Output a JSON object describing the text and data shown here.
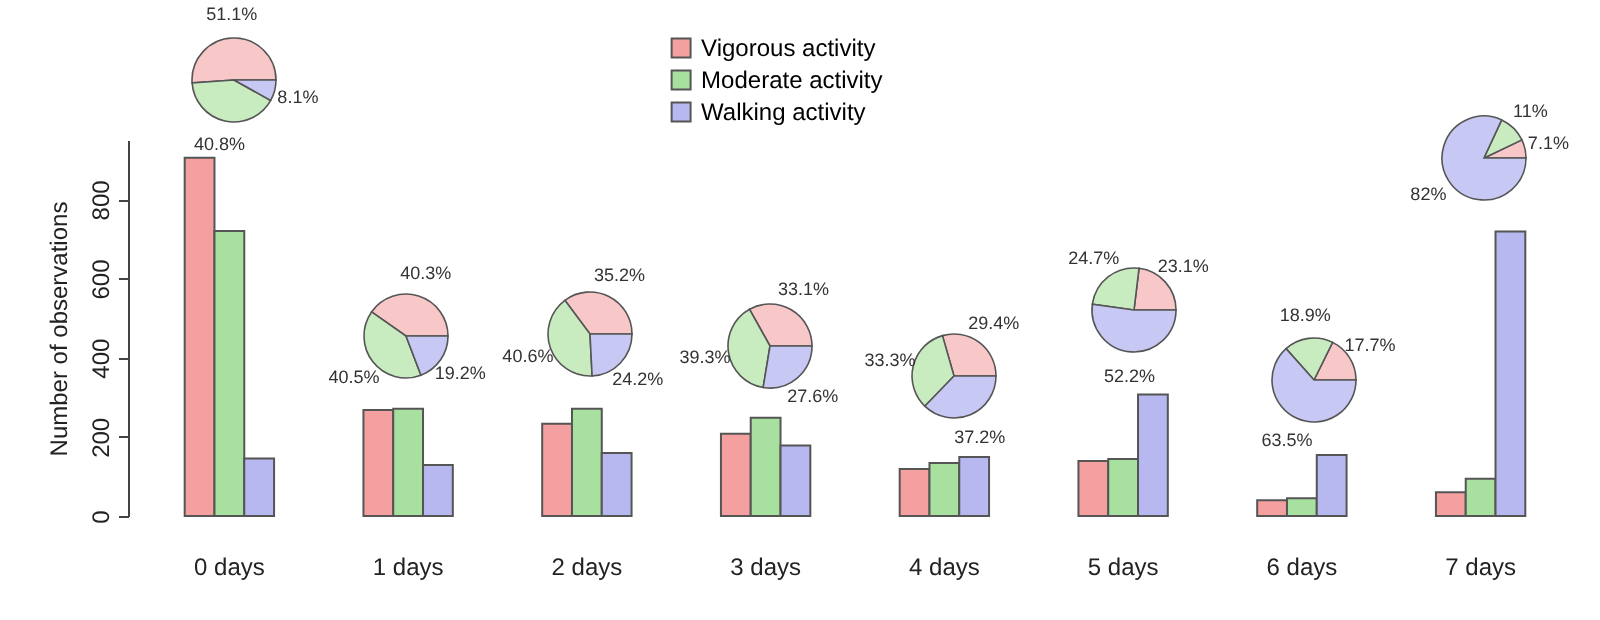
{
  "chart_data": [
    {
      "type": "bar",
      "ylabel": "Number of observations",
      "categories": [
        "0 days",
        "1 days",
        "2 days",
        "3 days",
        "4 days",
        "5 days",
        "6 days",
        "7 days"
      ],
      "series": [
        {
          "name": "Vigorous activity",
          "color": "#f4a0a0",
          "values": [
            905,
            268,
            233,
            208,
            119,
            139,
            40,
            60
          ]
        },
        {
          "name": "Moderate activity",
          "color": "#a8e0a0",
          "values": [
            720,
            271,
            271,
            248,
            134,
            144,
            45,
            94
          ]
        },
        {
          "name": "Walking activity",
          "color": "#b8b8f0",
          "values": [
            145,
            129,
            159,
            178,
            149,
            307,
            154,
            719
          ]
        }
      ],
      "ylim": [
        0,
        950
      ],
      "yticks": [
        0,
        200,
        400,
        600,
        800
      ],
      "grid": false,
      "legend": "top"
    },
    {
      "type": "pie",
      "categories": [
        null,
        null,
        null
      ],
      "values": [
        51.1,
        40.8,
        8.1
      ],
      "colors": [
        "#f8c8c8",
        "#c8ecc0",
        "#c8c8f4"
      ],
      "value_labels": [
        "51.1%",
        "40.8%",
        "8.1%"
      ]
    },
    {
      "type": "pie",
      "categories": [
        null,
        null,
        null
      ],
      "values": [
        40.3,
        40.5,
        19.2
      ],
      "colors": [
        "#f8c8c8",
        "#c8ecc0",
        "#c8c8f4"
      ],
      "value_labels": [
        "40.3%",
        "40.5%",
        "19.2%"
      ]
    },
    {
      "type": "pie",
      "categories": [
        null,
        null,
        null
      ],
      "values": [
        35.2,
        40.6,
        24.2
      ],
      "colors": [
        "#f8c8c8",
        "#c8ecc0",
        "#c8c8f4"
      ],
      "value_labels": [
        "35.2%",
        "40.6%",
        "24.2%"
      ]
    },
    {
      "type": "pie",
      "categories": [
        null,
        null,
        null
      ],
      "values": [
        33.1,
        39.3,
        27.6
      ],
      "colors": [
        "#f8c8c8",
        "#c8ecc0",
        "#c8c8f4"
      ],
      "value_labels": [
        "33.1%",
        "39.3%",
        "27.6%"
      ]
    },
    {
      "type": "pie",
      "categories": [
        null,
        null,
        null
      ],
      "values": [
        29.4,
        33.3,
        37.2
      ],
      "colors": [
        "#f8c8c8",
        "#c8ecc0",
        "#c8c8f4"
      ],
      "value_labels": [
        "29.4%",
        "33.3%",
        "37.2%"
      ]
    },
    {
      "type": "pie",
      "categories": [
        null,
        null,
        null
      ],
      "values": [
        23.1,
        24.7,
        52.2
      ],
      "colors": [
        "#f8c8c8",
        "#c8ecc0",
        "#c8c8f4"
      ],
      "value_labels": [
        "23.1%",
        "24.7%",
        "52.2%"
      ]
    },
    {
      "type": "pie",
      "categories": [
        null,
        null,
        null
      ],
      "values": [
        17.7,
        18.9,
        63.5
      ],
      "colors": [
        "#f8c8c8",
        "#c8ecc0",
        "#c8c8f4"
      ],
      "value_labels": [
        "17.7%",
        "18.9%",
        "63.5%"
      ]
    },
    {
      "type": "pie",
      "categories": [
        null,
        null,
        null
      ],
      "values": [
        7.1,
        11,
        82
      ],
      "colors": [
        "#f8c8c8",
        "#c8ecc0",
        "#c8c8f4"
      ],
      "value_labels": [
        "7.1%",
        "11%",
        "82%"
      ]
    }
  ]
}
